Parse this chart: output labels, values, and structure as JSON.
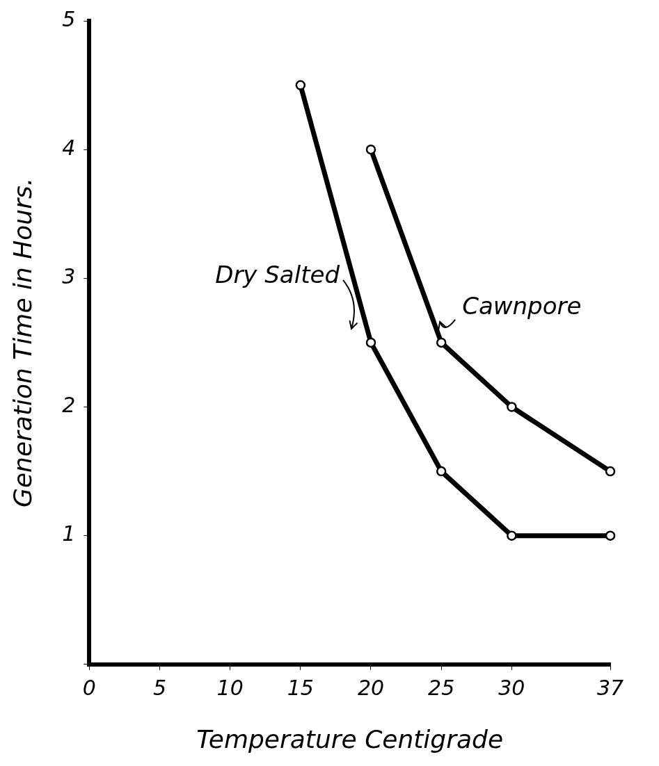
{
  "chart_data": {
    "type": "line",
    "xlabel": "Temperature Centigrade",
    "ylabel": "Generation Time in Hours.",
    "xlim": [
      0,
      37
    ],
    "xticks": [
      0,
      5,
      10,
      15,
      20,
      25,
      30,
      37
    ],
    "ylim": [
      0,
      5
    ],
    "yticks": [
      {
        "value": 0,
        "label": null
      },
      1,
      2,
      3,
      4,
      5
    ],
    "grid": false,
    "legend": false,
    "marker": "circle",
    "line_style": "solid",
    "series": [
      {
        "name": "Dry Salted",
        "color": "#000000",
        "x": [
          15,
          20,
          25,
          30,
          37
        ],
        "values": [
          4.5,
          2.5,
          1.5,
          1,
          1
        ]
      },
      {
        "name": "Cawnpore",
        "color": "#000000",
        "x": [
          20,
          25,
          30,
          37
        ],
        "values": [
          4,
          2.5,
          2,
          1.5
        ]
      }
    ]
  }
}
